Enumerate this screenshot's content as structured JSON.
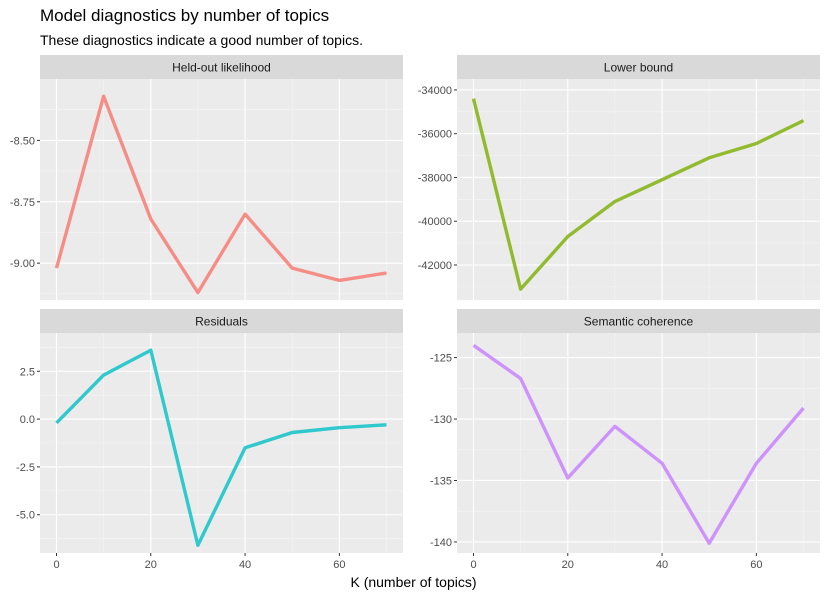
{
  "title": "Model diagnostics by number of topics",
  "subtitle": "These diagnostics indicate a good number of topics.",
  "xlabel": "K (number of topics)",
  "chart_data": {
    "type": "line",
    "x": [
      0,
      10,
      20,
      30,
      40,
      50,
      60,
      70
    ],
    "x_ticks": [
      "0",
      "20",
      "40",
      "60"
    ],
    "panels": [
      {
        "name": "Held-out likelihood",
        "color": "#F8766D",
        "values": [
          -9.02,
          -8.32,
          -8.82,
          -9.12,
          -8.8,
          -9.02,
          -9.07,
          -9.04
        ],
        "ylim": [
          -9.15,
          -8.25
        ],
        "y_ticks": [
          -8.5,
          -8.75,
          -9.0
        ],
        "y_tick_labels": [
          "-8.50",
          "-8.75",
          "-9.00"
        ]
      },
      {
        "name": "Lower bound",
        "color": "#7CAE00",
        "values": [
          -34400,
          -43100,
          -40700,
          -39100,
          -38100,
          -37100,
          -36450,
          -35400
        ],
        "ylim": [
          -43600,
          -33500
        ],
        "y_ticks": [
          -34000,
          -36000,
          -38000,
          -40000,
          -42000
        ],
        "y_tick_labels": [
          "-34000",
          "-36000",
          "-38000",
          "-40000",
          "-42000"
        ]
      },
      {
        "name": "Residuals",
        "color": "#00BFC4",
        "values": [
          -0.2,
          2.3,
          3.6,
          -6.6,
          -1.5,
          -0.7,
          -0.45,
          -0.3
        ],
        "ylim": [
          -7.0,
          4.5
        ],
        "y_ticks": [
          2.5,
          0,
          -2.5,
          -5.0
        ],
        "y_tick_labels": [
          "2.5",
          "0.0",
          "-2.5",
          "-5.0"
        ]
      },
      {
        "name": "Semantic coherence",
        "color": "#C77CFF",
        "values": [
          -124.0,
          -126.7,
          -134.8,
          -130.6,
          -133.6,
          -140.1,
          -133.6,
          -129.1
        ],
        "ylim": [
          -140.9,
          -123.0
        ],
        "y_ticks": [
          -125,
          -130,
          -135,
          -140
        ],
        "y_tick_labels": [
          "-125",
          "-130",
          "-135",
          "-140"
        ]
      }
    ],
    "grid": true,
    "legend": "none"
  }
}
